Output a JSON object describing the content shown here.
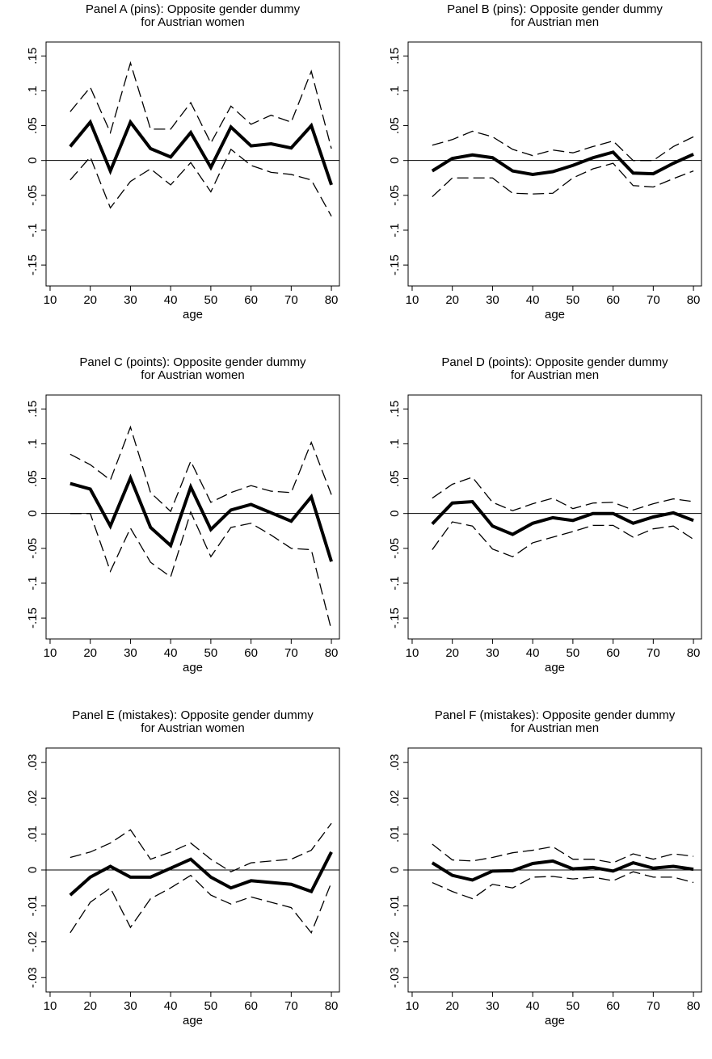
{
  "chart_data": [
    {
      "type": "line",
      "title": "Panel A (pins): Opposite gender dummy",
      "subtitle": "for Austrian women",
      "xlabel": "age",
      "x": [
        15,
        20,
        25,
        30,
        35,
        40,
        45,
        50,
        55,
        60,
        65,
        70,
        75,
        80
      ],
      "xlim": [
        9,
        82
      ],
      "xticks": [
        10,
        20,
        30,
        40,
        50,
        60,
        70,
        80
      ],
      "ylim": [
        -0.18,
        0.17
      ],
      "yticks": [
        {
          "value": 0.15,
          "label": ".15"
        },
        {
          "value": 0.1,
          "label": ".1"
        },
        {
          "value": 0.05,
          "label": ".05"
        },
        0,
        {
          "value": -0.05,
          "label": "-.05"
        },
        {
          "value": -0.1,
          "label": "-.1"
        },
        {
          "value": -0.15,
          "label": "-.15"
        }
      ],
      "hline": 0,
      "series": [
        {
          "color": "#000",
          "line_style": "solid",
          "values": [
            0.02,
            0.055,
            -0.015,
            0.055,
            0.017,
            0.005,
            0.04,
            -0.01,
            0.048,
            0.021,
            0.024,
            0.018,
            0.05,
            -0.035
          ]
        },
        {
          "color": "#000",
          "line_style": "dashed",
          "values": [
            0.07,
            0.105,
            0.04,
            0.14,
            0.045,
            0.045,
            0.083,
            0.025,
            0.078,
            0.052,
            0.065,
            0.055,
            0.128,
            0.017
          ]
        },
        {
          "color": "#000",
          "line_style": "dashed",
          "values": [
            -0.028,
            0.005,
            -0.068,
            -0.03,
            -0.012,
            -0.035,
            -0.003,
            -0.045,
            0.016,
            -0.007,
            -0.017,
            -0.02,
            -0.028,
            -0.08
          ]
        }
      ]
    },
    {
      "type": "line",
      "title": "Panel B (pins): Opposite gender dummy",
      "subtitle": "for Austrian men",
      "xlabel": "age",
      "x": [
        15,
        20,
        25,
        30,
        35,
        40,
        45,
        50,
        55,
        60,
        65,
        70,
        75,
        80
      ],
      "xlim": [
        9,
        82
      ],
      "xticks": [
        10,
        20,
        30,
        40,
        50,
        60,
        70,
        80
      ],
      "ylim": [
        -0.18,
        0.17
      ],
      "yticks": [
        {
          "value": 0.15,
          "label": ".15"
        },
        {
          "value": 0.1,
          "label": ".1"
        },
        {
          "value": 0.05,
          "label": ".05"
        },
        0,
        {
          "value": -0.05,
          "label": "-.05"
        },
        {
          "value": -0.1,
          "label": "-.1"
        },
        {
          "value": -0.15,
          "label": "-.15"
        }
      ],
      "hline": 0,
      "series": [
        {
          "color": "#000",
          "line_style": "solid",
          "values": [
            -0.015,
            0.003,
            0.008,
            0.004,
            -0.015,
            -0.02,
            -0.016,
            -0.007,
            0.004,
            0.012,
            -0.018,
            -0.019,
            -0.004,
            0.009
          ]
        },
        {
          "color": "#000",
          "line_style": "dashed",
          "values": [
            0.022,
            0.03,
            0.042,
            0.034,
            0.016,
            0.007,
            0.015,
            0.011,
            0.02,
            0.028,
            0,
            0,
            0.02,
            0.034
          ]
        },
        {
          "color": "#000",
          "line_style": "dashed",
          "values": [
            -0.052,
            -0.025,
            -0.025,
            -0.025,
            -0.047,
            -0.048,
            -0.047,
            -0.025,
            -0.012,
            -0.004,
            -0.036,
            -0.038,
            -0.026,
            -0.015
          ]
        }
      ]
    },
    {
      "type": "line",
      "title": "Panel C (points): Opposite gender dummy",
      "subtitle": "for Austrian women",
      "xlabel": "age",
      "x": [
        15,
        20,
        25,
        30,
        35,
        40,
        45,
        50,
        55,
        60,
        65,
        70,
        75,
        80
      ],
      "xlim": [
        9,
        82
      ],
      "xticks": [
        10,
        20,
        30,
        40,
        50,
        60,
        70,
        80
      ],
      "ylim": [
        -0.18,
        0.17
      ],
      "yticks": [
        {
          "value": 0.15,
          "label": ".15"
        },
        {
          "value": 0.1,
          "label": ".1"
        },
        {
          "value": 0.05,
          "label": ".05"
        },
        0,
        {
          "value": -0.05,
          "label": "-.05"
        },
        {
          "value": -0.1,
          "label": "-.1"
        },
        {
          "value": -0.15,
          "label": "-.15"
        }
      ],
      "hline": 0,
      "series": [
        {
          "color": "#000",
          "line_style": "solid",
          "values": [
            0.043,
            0.035,
            -0.018,
            0.051,
            -0.02,
            -0.046,
            0.038,
            -0.023,
            0.005,
            0.013,
            0.001,
            -0.011,
            0.024,
            -0.069
          ]
        },
        {
          "color": "#000",
          "line_style": "dashed",
          "values": [
            0.085,
            0.07,
            0.048,
            0.124,
            0.03,
            0.003,
            0.075,
            0.016,
            0.03,
            0.04,
            0.032,
            0.03,
            0.102,
            0.027
          ]
        },
        {
          "color": "#000",
          "line_style": "dashed",
          "values": [
            0,
            0,
            -0.083,
            -0.021,
            -0.07,
            -0.091,
            0.002,
            -0.062,
            -0.02,
            -0.014,
            -0.031,
            -0.05,
            -0.052,
            -0.167
          ]
        }
      ]
    },
    {
      "type": "line",
      "title": "Panel D (points): Opposite gender dummy",
      "subtitle": "for Austrian men",
      "xlabel": "age",
      "x": [
        15,
        20,
        25,
        30,
        35,
        40,
        45,
        50,
        55,
        60,
        65,
        70,
        75,
        80
      ],
      "xlim": [
        9,
        82
      ],
      "xticks": [
        10,
        20,
        30,
        40,
        50,
        60,
        70,
        80
      ],
      "ylim": [
        -0.18,
        0.17
      ],
      "yticks": [
        {
          "value": 0.15,
          "label": ".15"
        },
        {
          "value": 0.1,
          "label": ".1"
        },
        {
          "value": 0.05,
          "label": ".05"
        },
        0,
        {
          "value": -0.05,
          "label": "-.05"
        },
        {
          "value": -0.1,
          "label": "-.1"
        },
        {
          "value": -0.15,
          "label": "-.15"
        }
      ],
      "hline": 0,
      "series": [
        {
          "color": "#000",
          "line_style": "solid",
          "values": [
            -0.015,
            0.015,
            0.017,
            -0.018,
            -0.03,
            -0.014,
            -0.006,
            -0.01,
            0,
            0,
            -0.014,
            -0.005,
            0.001,
            -0.01
          ]
        },
        {
          "color": "#000",
          "line_style": "dashed",
          "values": [
            0.022,
            0.042,
            0.052,
            0.016,
            0.004,
            0.014,
            0.022,
            0.007,
            0.015,
            0.016,
            0.005,
            0.014,
            0.021,
            0.017
          ]
        },
        {
          "color": "#000",
          "line_style": "dashed",
          "values": [
            -0.052,
            -0.012,
            -0.018,
            -0.051,
            -0.062,
            -0.042,
            -0.034,
            -0.026,
            -0.017,
            -0.017,
            -0.034,
            -0.022,
            -0.018,
            -0.037
          ]
        }
      ]
    },
    {
      "type": "line",
      "title": "Panel E (mistakes): Opposite gender dummy",
      "subtitle": "for Austrian women",
      "xlabel": "age",
      "x": [
        15,
        20,
        25,
        30,
        35,
        40,
        45,
        50,
        55,
        60,
        65,
        70,
        75,
        80
      ],
      "xlim": [
        9,
        82
      ],
      "xticks": [
        10,
        20,
        30,
        40,
        50,
        60,
        70,
        80
      ],
      "ylim": [
        -0.034,
        0.034
      ],
      "yticks": [
        {
          "value": 0.03,
          "label": ".03"
        },
        {
          "value": 0.02,
          "label": ".02"
        },
        {
          "value": 0.01,
          "label": ".01"
        },
        0,
        {
          "value": -0.01,
          "label": "-.01"
        },
        {
          "value": -0.02,
          "label": "-.02"
        },
        {
          "value": -0.03,
          "label": "-.03"
        }
      ],
      "hline": 0,
      "series": [
        {
          "color": "#000",
          "line_style": "solid",
          "values": [
            -0.007,
            -0.002,
            0.001,
            -0.002,
            -0.002,
            0.0005,
            0.003,
            -0.002,
            -0.005,
            -0.003,
            -0.0035,
            -0.004,
            -0.006,
            0.005
          ]
        },
        {
          "color": "#000",
          "line_style": "dashed",
          "values": [
            0.0035,
            0.005,
            0.0075,
            0.0112,
            0.003,
            0.005,
            0.0075,
            0.003,
            -0.0005,
            0.002,
            0.0025,
            0.003,
            0.0055,
            0.013
          ]
        },
        {
          "color": "#000",
          "line_style": "dashed",
          "values": [
            -0.0175,
            -0.009,
            -0.005,
            -0.016,
            -0.008,
            -0.005,
            -0.0015,
            -0.007,
            -0.0095,
            -0.0075,
            -0.009,
            -0.0105,
            -0.0175,
            -0.0035
          ]
        }
      ]
    },
    {
      "type": "line",
      "title": "Panel F (mistakes): Opposite gender dummy",
      "subtitle": "for Austrian men",
      "xlabel": "age",
      "x": [
        15,
        20,
        25,
        30,
        35,
        40,
        45,
        50,
        55,
        60,
        65,
        70,
        75,
        80
      ],
      "xlim": [
        9,
        82
      ],
      "xticks": [
        10,
        20,
        30,
        40,
        50,
        60,
        70,
        80
      ],
      "ylim": [
        -0.034,
        0.034
      ],
      "yticks": [
        {
          "value": 0.03,
          "label": ".03"
        },
        {
          "value": 0.02,
          "label": ".02"
        },
        {
          "value": 0.01,
          "label": ".01"
        },
        0,
        {
          "value": -0.01,
          "label": "-.01"
        },
        {
          "value": -0.02,
          "label": "-.02"
        },
        {
          "value": -0.03,
          "label": "-.03"
        }
      ],
      "hline": 0,
      "series": [
        {
          "color": "#000",
          "line_style": "solid",
          "values": [
            0.002,
            -0.0015,
            -0.0028,
            -0.0003,
            -0.0002,
            0.0018,
            0.0025,
            0.0003,
            0.0007,
            -0.0003,
            0.002,
            0.0005,
            0.001,
            0.0002
          ]
        },
        {
          "color": "#000",
          "line_style": "dashed",
          "values": [
            0.0072,
            0.0028,
            0.0025,
            0.0035,
            0.0048,
            0.0055,
            0.0065,
            0.003,
            0.003,
            0.002,
            0.0045,
            0.003,
            0.0045,
            0.0038
          ]
        },
        {
          "color": "#000",
          "line_style": "dashed",
          "values": [
            -0.0035,
            -0.006,
            -0.008,
            -0.004,
            -0.005,
            -0.002,
            -0.0018,
            -0.0025,
            -0.002,
            -0.003,
            -0.0005,
            -0.002,
            -0.002,
            -0.0035
          ]
        }
      ]
    }
  ]
}
